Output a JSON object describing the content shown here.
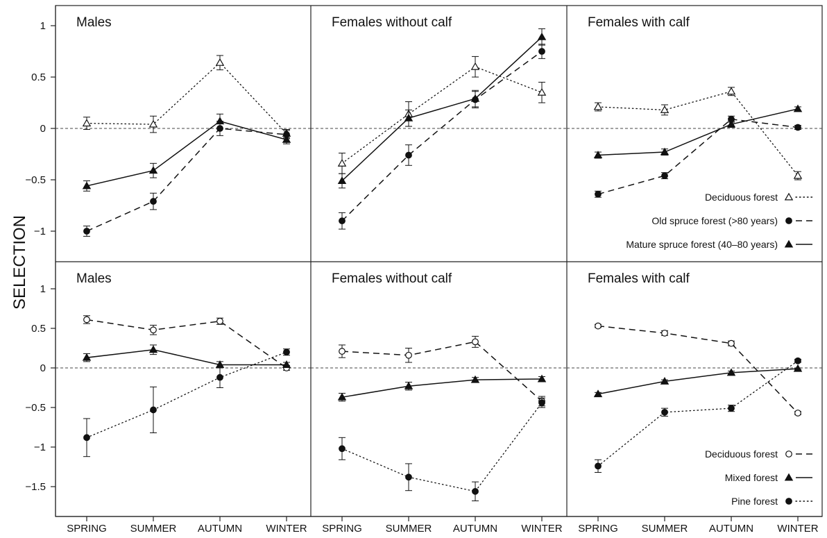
{
  "figure": {
    "ylabel": "SELECTION",
    "x_categories": [
      "SPRING",
      "SUMMER",
      "AUTUMN",
      "WINTER"
    ]
  },
  "chart_data": [
    {
      "type": "line",
      "title": "Males",
      "ylabel": "SELECTION",
      "categories": [
        "SPRING",
        "SUMMER",
        "AUTUMN",
        "WINTER"
      ],
      "ylim": [
        -1.3,
        1.25
      ],
      "yticks": [
        -1,
        -0.5,
        0,
        0.5,
        1
      ],
      "ytick_labels": [
        "−1",
        "−0.5",
        "0",
        "0.5",
        "1"
      ],
      "reference_line": 0,
      "series": [
        {
          "name": "Deciduous forest",
          "marker": "open-triangle",
          "linestyle": "dotted",
          "values": [
            0.05,
            0.04,
            0.64,
            -0.05
          ],
          "errors": [
            0.06,
            0.08,
            0.07,
            0.04
          ]
        },
        {
          "name": "Old spruce forest (>80 years)",
          "marker": "filled-circle",
          "linestyle": "dashed",
          "values": [
            -1.0,
            -0.71,
            0.0,
            -0.06
          ],
          "errors": [
            0.05,
            0.08,
            0.07,
            0.04
          ]
        },
        {
          "name": "Mature spruce forest (40–80 years)",
          "marker": "filled-triangle",
          "linestyle": "solid",
          "values": [
            -0.56,
            -0.41,
            0.07,
            -0.11
          ],
          "errors": [
            0.05,
            0.07,
            0.07,
            0.04
          ]
        }
      ]
    },
    {
      "type": "line",
      "title": "Females without calf",
      "categories": [
        "SPRING",
        "SUMMER",
        "AUTUMN",
        "WINTER"
      ],
      "ylim": [
        -1.3,
        1.25
      ],
      "reference_line": 0,
      "series": [
        {
          "name": "Deciduous forest",
          "marker": "open-triangle",
          "linestyle": "dotted",
          "values": [
            -0.34,
            0.14,
            0.6,
            0.35
          ],
          "errors": [
            0.1,
            0.12,
            0.1,
            0.1
          ]
        },
        {
          "name": "Old spruce forest (>80 years)",
          "marker": "filled-circle",
          "linestyle": "dashed",
          "values": [
            -0.9,
            -0.26,
            0.28,
            0.75
          ],
          "errors": [
            0.08,
            0.1,
            0.08,
            0.07
          ]
        },
        {
          "name": "Mature spruce forest (40–80 years)",
          "marker": "filled-triangle",
          "linestyle": "solid",
          "values": [
            -0.51,
            0.1,
            0.29,
            0.89
          ],
          "errors": [
            0.07,
            0.08,
            0.08,
            0.08
          ]
        }
      ]
    },
    {
      "type": "line",
      "title": "Females with calf",
      "categories": [
        "SPRING",
        "SUMMER",
        "AUTUMN",
        "WINTER"
      ],
      "ylim": [
        -1.3,
        1.25
      ],
      "reference_line": 0,
      "legend": {
        "placement": "bottom-right",
        "entries": [
          "Deciduous forest",
          "Old spruce forest (>80 years)",
          "Mature spruce forest (40–80 years)"
        ]
      },
      "series": [
        {
          "name": "Deciduous forest",
          "marker": "open-triangle",
          "linestyle": "dotted",
          "values": [
            0.21,
            0.18,
            0.36,
            -0.46
          ],
          "errors": [
            0.04,
            0.05,
            0.04,
            0.04
          ]
        },
        {
          "name": "Old spruce forest (>80 years)",
          "marker": "filled-circle",
          "linestyle": "dashed",
          "values": [
            -0.64,
            -0.46,
            0.09,
            0.01
          ],
          "errors": [
            0.03,
            0.03,
            0.03,
            0.02
          ]
        },
        {
          "name": "Mature spruce forest (40–80 years)",
          "marker": "filled-triangle",
          "linestyle": "solid",
          "values": [
            -0.26,
            -0.23,
            0.04,
            0.19
          ],
          "errors": [
            0.03,
            0.03,
            0.03,
            0.02
          ]
        }
      ]
    },
    {
      "type": "line",
      "title": "Males",
      "categories": [
        "SPRING",
        "SUMMER",
        "AUTUMN",
        "WINTER"
      ],
      "ylim": [
        -1.8,
        1.3
      ],
      "yticks": [
        -1.5,
        -1,
        -0.5,
        0,
        0.5,
        1
      ],
      "ytick_labels": [
        "−1.5",
        "−1",
        "−0.5",
        "0",
        "0.5",
        "1"
      ],
      "reference_line": 0,
      "series": [
        {
          "name": "Deciduous forest",
          "marker": "open-circle",
          "linestyle": "dashed",
          "values": [
            0.61,
            0.48,
            0.59,
            0.0
          ],
          "errors": [
            0.05,
            0.06,
            0.04,
            0.03
          ]
        },
        {
          "name": "Mixed forest",
          "marker": "filled-triangle",
          "linestyle": "solid",
          "values": [
            0.13,
            0.23,
            0.04,
            0.04
          ],
          "errors": [
            0.05,
            0.06,
            0.04,
            0.03
          ]
        },
        {
          "name": "Pine forest",
          "marker": "filled-circle",
          "linestyle": "dotted",
          "values": [
            -0.88,
            -0.53,
            -0.12,
            0.2
          ],
          "errors": [
            0.24,
            0.29,
            0.13,
            0.04
          ]
        }
      ]
    },
    {
      "type": "line",
      "title": "Females without calf",
      "categories": [
        "SPRING",
        "SUMMER",
        "AUTUMN",
        "WINTER"
      ],
      "ylim": [
        -1.8,
        1.3
      ],
      "reference_line": 0,
      "series": [
        {
          "name": "Deciduous forest",
          "marker": "open-circle",
          "linestyle": "dashed",
          "values": [
            0.21,
            0.16,
            0.33,
            -0.42
          ],
          "errors": [
            0.08,
            0.09,
            0.07,
            0.06
          ]
        },
        {
          "name": "Mixed forest",
          "marker": "filled-triangle",
          "linestyle": "solid",
          "values": [
            -0.37,
            -0.23,
            -0.15,
            -0.14
          ],
          "errors": [
            0.05,
            0.05,
            0.03,
            0.03
          ]
        },
        {
          "name": "Pine forest",
          "marker": "filled-circle",
          "linestyle": "dotted",
          "values": [
            -1.02,
            -1.38,
            -1.56,
            -0.44
          ],
          "errors": [
            0.14,
            0.17,
            0.12,
            0.06
          ]
        }
      ]
    },
    {
      "type": "line",
      "title": "Females with calf",
      "categories": [
        "SPRING",
        "SUMMER",
        "AUTUMN",
        "WINTER"
      ],
      "ylim": [
        -1.8,
        1.3
      ],
      "reference_line": 0,
      "legend": {
        "placement": "bottom-right",
        "entries": [
          "Deciduous forest",
          "Mixed forest",
          "Pine forest"
        ]
      },
      "series": [
        {
          "name": "Deciduous forest",
          "marker": "open-circle",
          "linestyle": "dashed",
          "values": [
            0.53,
            0.44,
            0.31,
            -0.57
          ],
          "errors": [
            0.02,
            0.03,
            0.03,
            0.02
          ]
        },
        {
          "name": "Mixed forest",
          "marker": "filled-triangle",
          "linestyle": "solid",
          "values": [
            -0.33,
            -0.17,
            -0.06,
            -0.01
          ],
          "errors": [
            0.02,
            0.02,
            0.02,
            0.01
          ]
        },
        {
          "name": "Pine forest",
          "marker": "filled-circle",
          "linestyle": "dotted",
          "values": [
            -1.24,
            -0.56,
            -0.51,
            0.09
          ],
          "errors": [
            0.08,
            0.05,
            0.04,
            0.02
          ]
        }
      ]
    }
  ]
}
